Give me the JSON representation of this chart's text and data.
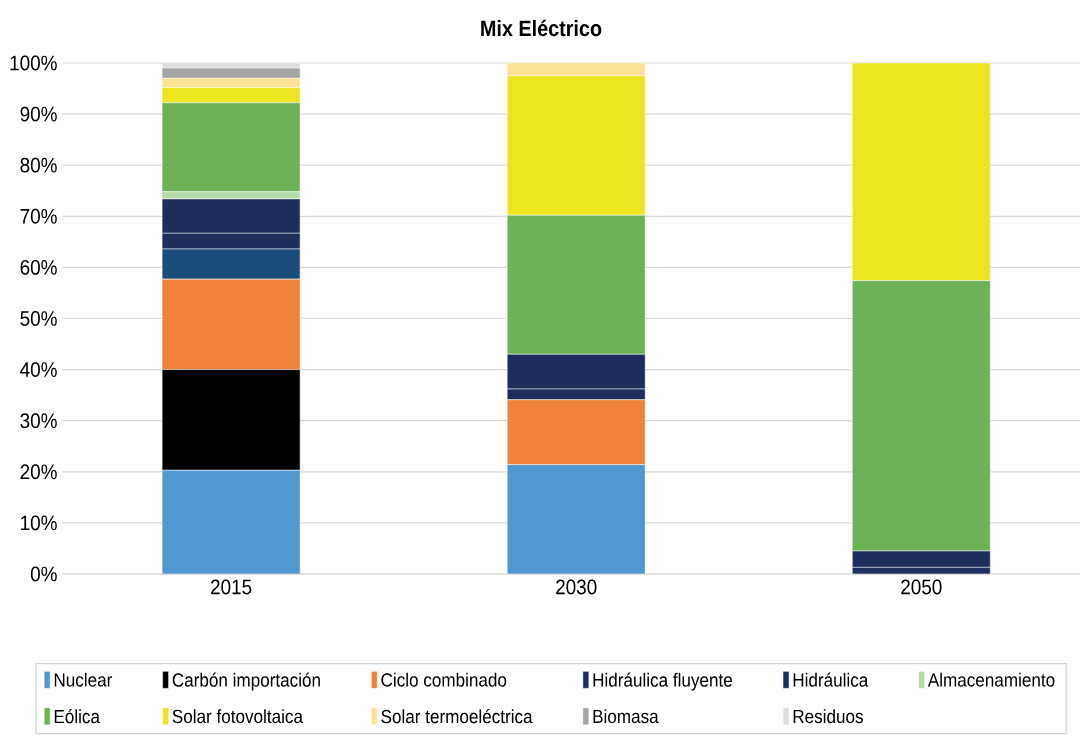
{
  "chart_data": {
    "type": "bar",
    "stacked": true,
    "title": "Mix Eléctrico",
    "categories": [
      "2015",
      "2030",
      "2050"
    ],
    "series": [
      {
        "name": "Nuclear",
        "color": "#5197d1",
        "values": [
          20.3,
          21.4,
          null
        ]
      },
      {
        "name": "Carbón importación",
        "color": "#000000",
        "values": [
          19.7,
          null,
          null
        ]
      },
      {
        "name": "Ciclo combinado",
        "color": "#f1823b",
        "values": [
          17.7,
          12.7,
          null
        ]
      },
      {
        "color": "#1b4d7c",
        "values": [
          5.9,
          null,
          null
        ]
      },
      {
        "name": "Hidráulica fluyente",
        "color": "#1e2d5c",
        "values": [
          3.1,
          2.1,
          1.3
        ]
      },
      {
        "name": "Hidráulica",
        "color": "#1e2d5c",
        "values": [
          6.7,
          6.8,
          3.2
        ]
      },
      {
        "name": "Almacenamiento",
        "color": "#b5dbab",
        "values": [
          1.4,
          null,
          null
        ]
      },
      {
        "name": "Eólica",
        "color": "#6db257",
        "values": [
          17.4,
          27.2,
          52.9
        ]
      },
      {
        "name": "Solar fotovoltaica",
        "color": "#ebe61f",
        "values": [
          3.0,
          27.3,
          42.6
        ]
      },
      {
        "name": "Solar termoeléctrica",
        "color": "#fde194",
        "values": [
          1.8,
          2.5,
          null
        ]
      },
      {
        "name": "Biomasa",
        "color": "#a5a5a5",
        "values": [
          2.0,
          null,
          null
        ]
      },
      {
        "name": "Residuos",
        "color": "#dddddd",
        "values": [
          1.0,
          null,
          null
        ]
      }
    ],
    "ylim": [
      0,
      100
    ],
    "yticks": [
      {
        "value": 0,
        "label": "0%"
      },
      {
        "value": 10,
        "label": "10%"
      },
      {
        "value": 20,
        "label": "20%"
      },
      {
        "value": 30,
        "label": "30%"
      },
      {
        "value": 40,
        "label": "40%"
      },
      {
        "value": 50,
        "label": "50%"
      },
      {
        "value": 60,
        "label": "60%"
      },
      {
        "value": 70,
        "label": "70%"
      },
      {
        "value": 80,
        "label": "80%"
      },
      {
        "value": 90,
        "label": "90%"
      },
      {
        "value": 100,
        "label": "100%"
      }
    ],
    "grid": "y",
    "legend": "bottom"
  }
}
